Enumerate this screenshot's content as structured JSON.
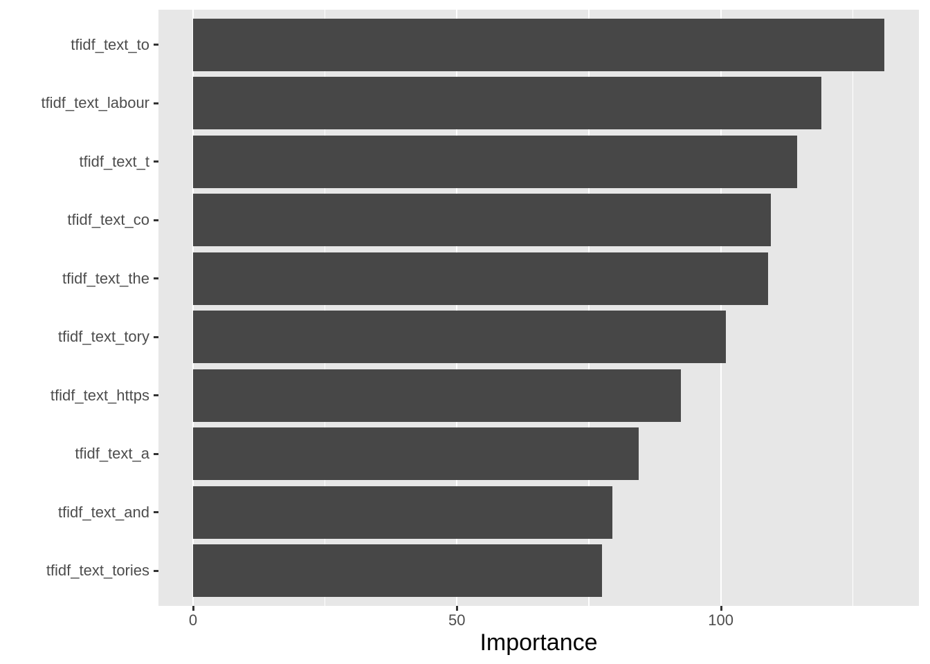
{
  "chart_data": {
    "type": "bar",
    "orientation": "horizontal",
    "title": "",
    "xlabel": "Importance",
    "ylabel": "",
    "categories": [
      "tfidf_text_to",
      "tfidf_text_labour",
      "tfidf_text_t",
      "tfidf_text_co",
      "tfidf_text_the",
      "tfidf_text_tory",
      "tfidf_text_https",
      "tfidf_text_a",
      "tfidf_text_and",
      "tfidf_text_tories"
    ],
    "categories_order": "top-to-bottom",
    "values": [
      131,
      119,
      114.5,
      109.5,
      109,
      101,
      92.5,
      84.5,
      79.5,
      77.5
    ],
    "xlim": [
      -6.55,
      137.55
    ],
    "x_major_ticks": [
      0,
      50,
      100
    ],
    "x_tick_labels": [
      "0",
      "50",
      "100"
    ],
    "x_minor_ticks": [
      25,
      75,
      125
    ],
    "grid": true,
    "legend": false,
    "colors": {
      "background": "#FFFFFF",
      "panel_bg": "#E7E7E7",
      "grid_major": "#FFFFFF",
      "grid_minor": "#FFFFFF",
      "bar_fill": "#474747",
      "tick_mark": "#333333",
      "tick_label": "#4D4D4D",
      "axis_title": "#000000"
    }
  }
}
